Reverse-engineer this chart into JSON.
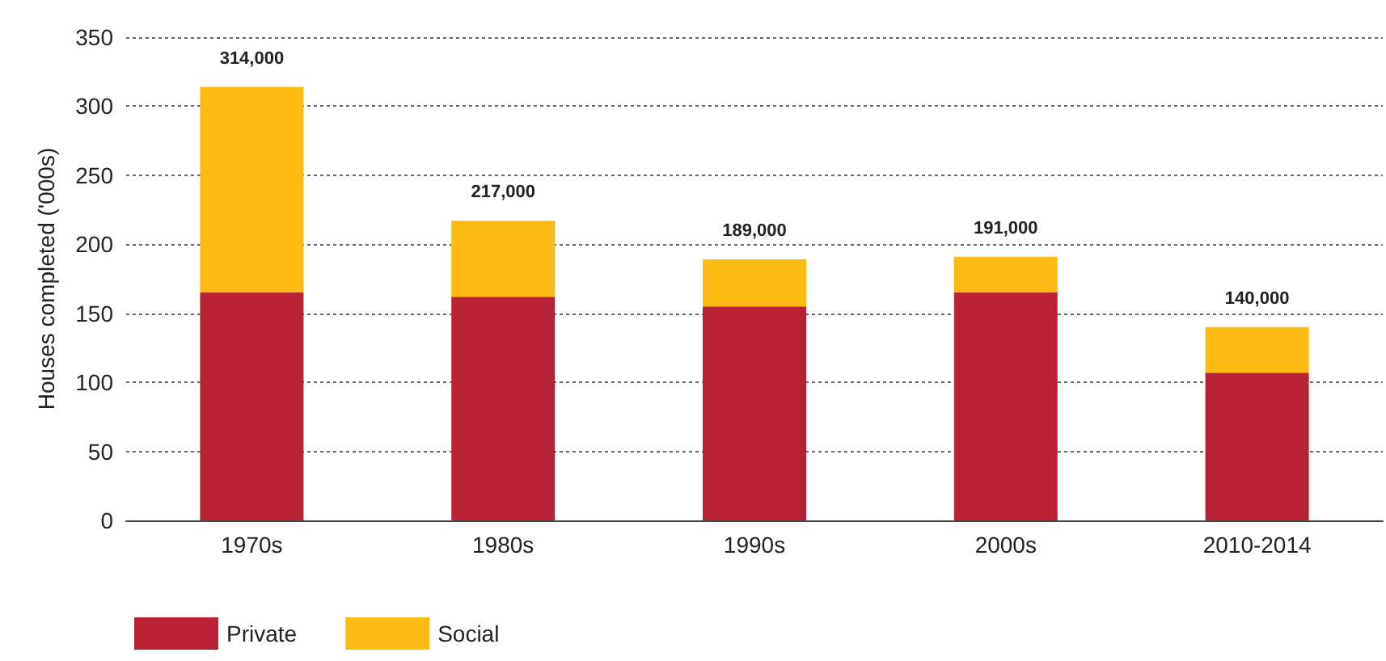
{
  "chart_data": {
    "type": "bar",
    "stacked": true,
    "ylabel": "Houses completed ('000s)",
    "categories": [
      "1970s",
      "1980s",
      "1990s",
      "2000s",
      "2010-2014"
    ],
    "series": [
      {
        "name": "Private",
        "color": "#b92234",
        "values": [
          165,
          162,
          155,
          165,
          107
        ]
      },
      {
        "name": "Social",
        "color": "#fdbb13",
        "values": [
          149,
          55,
          34,
          26,
          33
        ]
      }
    ],
    "totals": [
      "314,000",
      "217,000",
      "189,000",
      "191,000",
      "140,000"
    ],
    "ylim": [
      0,
      350
    ],
    "yticks": [
      0,
      50,
      100,
      150,
      200,
      250,
      300,
      350
    ],
    "grid": "y",
    "legend": "bottom left"
  }
}
